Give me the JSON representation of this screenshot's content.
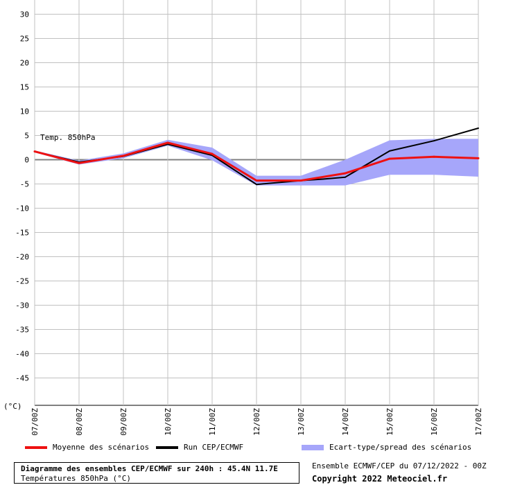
{
  "chart_data": {
    "type": "line",
    "ylabel": "(°C)",
    "annotation": "Temp. 850hPa",
    "ylim": [
      -50,
      30
    ],
    "yticks": [
      30,
      25,
      20,
      15,
      10,
      5,
      0,
      -5,
      -10,
      -15,
      -20,
      -25,
      -30,
      -35,
      -40,
      -45
    ],
    "categories": [
      "07/00Z",
      "08/00Z",
      "09/00Z",
      "10/00Z",
      "11/00Z",
      "12/00Z",
      "13/00Z",
      "14/00Z",
      "15/00Z",
      "16/00Z",
      "17/00Z"
    ],
    "series": [
      {
        "name": "Moyenne des scénarios",
        "type": "line",
        "color": "#ee1111",
        "x": [
          0,
          1,
          2,
          3,
          4,
          5,
          6,
          7,
          8,
          9,
          10
        ],
        "values": [
          1.7,
          -0.7,
          0.8,
          3.5,
          1.2,
          -4.3,
          -4.3,
          -2.8,
          0.2,
          0.6,
          0.3
        ]
      },
      {
        "name": "Run CEP/ECMWF",
        "type": "line",
        "color": "#000000",
        "x": [
          0,
          1,
          2,
          3,
          4,
          5,
          6,
          6.5,
          7,
          8,
          9,
          10
        ],
        "values": [
          1.7,
          -0.5,
          0.7,
          3.2,
          0.9,
          -5.1,
          -4.3,
          -4.0,
          -3.6,
          1.8,
          3.9,
          6.5
        ]
      },
      {
        "name": "Ecart-type/spread des scénarios",
        "type": "band",
        "color": "#a6a6fa",
        "x": [
          0,
          1,
          2,
          3,
          4,
          5,
          6,
          7,
          8,
          9,
          10
        ],
        "upper": [
          1.9,
          -0.2,
          1.3,
          4.1,
          2.5,
          -3.3,
          -3.3,
          0.0,
          4.0,
          4.3,
          4.3
        ],
        "lower": [
          1.5,
          -1.0,
          0.3,
          2.9,
          -0.1,
          -5.3,
          -5.3,
          -5.3,
          -3.1,
          -3.1,
          -3.5
        ]
      }
    ]
  },
  "legend": {
    "mean": "Moyenne des scénarios",
    "run": "Run CEP/ECMWF",
    "spread": "Ecart-type/spread des scénarios"
  },
  "title": {
    "main": "Diagramme des ensembles CEP/ECMWF sur 240h : 45.4N 11.7E",
    "sub": "Températures 850hPa (°C)"
  },
  "run_info": "Ensemble ECMWF/CEP du 07/12/2022 - 00Z",
  "copyright": "Copyright 2022 Meteociel.fr",
  "colors": {
    "mean": "#ee1111",
    "run": "#000000",
    "spread": "#a6a6fa",
    "grid": "#c0c0c0"
  }
}
